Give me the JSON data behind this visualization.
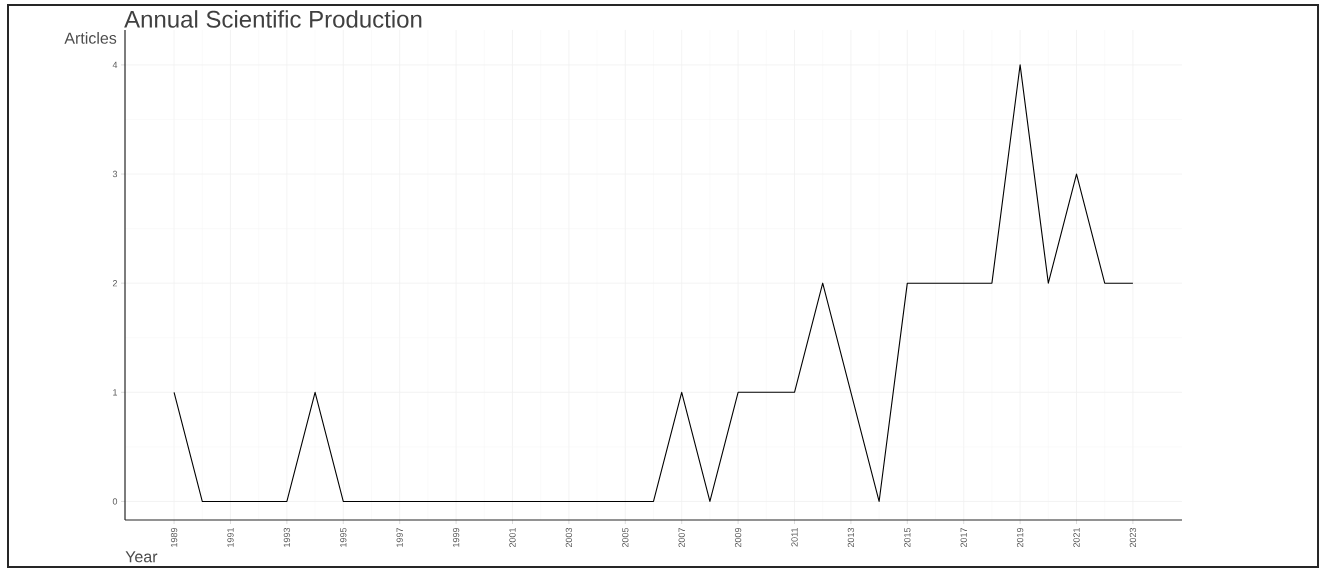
{
  "chart_data": {
    "type": "line",
    "title": "Annual Scientific Production",
    "xlabel": "Year",
    "ylabel": "Articles",
    "x": [
      1989,
      1990,
      1991,
      1992,
      1993,
      1994,
      1995,
      1996,
      1997,
      1998,
      1999,
      2000,
      2001,
      2002,
      2003,
      2004,
      2005,
      2006,
      2007,
      2008,
      2009,
      2010,
      2011,
      2012,
      2013,
      2014,
      2015,
      2016,
      2017,
      2018,
      2019,
      2020,
      2021,
      2022,
      2023
    ],
    "series": [
      {
        "color": "#000000",
        "values": [
          1,
          0,
          0,
          0,
          0,
          1,
          0,
          0,
          0,
          0,
          0,
          0,
          0,
          0,
          0,
          0,
          0,
          0,
          1,
          0,
          1,
          1,
          1,
          2,
          1,
          0,
          2,
          2,
          2,
          2,
          4,
          2,
          3,
          2,
          2
        ]
      }
    ],
    "xlim": [
      1987.26,
      2024.74
    ],
    "ylim": [
      -0.17,
      4.32
    ],
    "xticks": [
      1989,
      1991,
      1993,
      1995,
      1997,
      1999,
      2001,
      2003,
      2005,
      2007,
      2009,
      2011,
      2013,
      2015,
      2017,
      2019,
      2021,
      2023
    ],
    "yticks": [
      0,
      1,
      2,
      3,
      4
    ],
    "grid": true,
    "marker": "none",
    "line_style": "solid"
  }
}
